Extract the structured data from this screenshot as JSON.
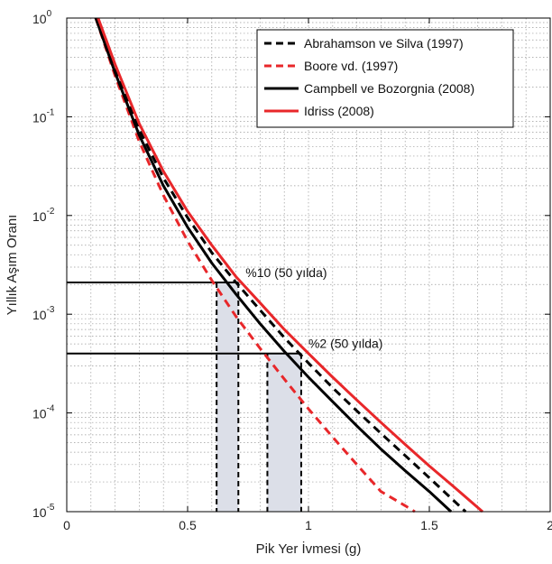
{
  "chart_data": {
    "type": "line",
    "xlabel": "Pik Yer İvmesi (g)",
    "ylabel": "Yıllık Aşım Oranı",
    "xlim": [
      0,
      2
    ],
    "ylim": [
      1e-05,
      1
    ],
    "yscale": "log",
    "grid": true,
    "legend_position": "top-right",
    "x_ticks": [
      {
        "value": 0,
        "label": "0"
      },
      {
        "value": 0.5,
        "label": "0.5"
      },
      {
        "value": 1,
        "label": "1"
      },
      {
        "value": 1.5,
        "label": "1.5"
      },
      {
        "value": 2,
        "label": "2"
      }
    ],
    "y_ticks": [
      {
        "value": 1,
        "mantissa": "10",
        "exponent": "0"
      },
      {
        "value": 0.1,
        "mantissa": "10",
        "exponent": "-1"
      },
      {
        "value": 0.01,
        "mantissa": "10",
        "exponent": "-2"
      },
      {
        "value": 0.001,
        "mantissa": "10",
        "exponent": "-3"
      },
      {
        "value": 0.0001,
        "mantissa": "10",
        "exponent": "-4"
      },
      {
        "value": 1e-05,
        "mantissa": "10",
        "exponent": "-5"
      }
    ],
    "series": [
      {
        "name": "Abrahamson ve Silva (1997)",
        "color": "#000000",
        "dash": "dashed",
        "x": [
          0.12,
          0.2,
          0.3,
          0.4,
          0.5,
          0.6,
          0.7,
          0.8,
          0.9,
          1.0,
          1.1,
          1.2,
          1.3,
          1.4,
          1.5,
          1.6,
          1.65
        ],
        "y": [
          1.0,
          0.3,
          0.074,
          0.024,
          0.0095,
          0.0042,
          0.0021,
          0.0011,
          0.00058,
          0.00032,
          0.00018,
          0.000105,
          6.2e-05,
          3.7e-05,
          2.2e-05,
          1.3e-05,
          1e-05
        ]
      },
      {
        "name": "Boore vd. (1997)",
        "color": "#e8272a",
        "dash": "dashed",
        "x": [
          0.12,
          0.2,
          0.3,
          0.4,
          0.5,
          0.6,
          0.7,
          0.8,
          0.9,
          1.0,
          1.1,
          1.2,
          1.3,
          1.4,
          1.44
        ],
        "y": [
          1.0,
          0.26,
          0.056,
          0.016,
          0.0055,
          0.0022,
          0.00095,
          0.00045,
          0.00022,
          0.00011,
          5.7e-05,
          3e-05,
          1.6e-05,
          1.15e-05,
          1e-05
        ]
      },
      {
        "name": "Campbell ve Bozorgnia  (2008)",
        "color": "#000000",
        "dash": "solid",
        "x": [
          0.12,
          0.2,
          0.3,
          0.4,
          0.5,
          0.6,
          0.7,
          0.8,
          0.9,
          1.0,
          1.1,
          1.2,
          1.3,
          1.4,
          1.5,
          1.59
        ],
        "y": [
          1.0,
          0.28,
          0.065,
          0.02,
          0.0076,
          0.0033,
          0.0016,
          0.0008,
          0.00042,
          0.00023,
          0.00013,
          7.4e-05,
          4.3e-05,
          2.6e-05,
          1.6e-05,
          1e-05
        ]
      },
      {
        "name": "Idriss (2008)",
        "color": "#e8272a",
        "dash": "solid",
        "x": [
          0.13,
          0.2,
          0.3,
          0.4,
          0.5,
          0.6,
          0.7,
          0.8,
          0.9,
          1.0,
          1.1,
          1.2,
          1.3,
          1.4,
          1.5,
          1.6,
          1.72
        ],
        "y": [
          1.0,
          0.34,
          0.085,
          0.028,
          0.011,
          0.005,
          0.0024,
          0.0013,
          0.0007,
          0.0004,
          0.00023,
          0.000135,
          8e-05,
          4.8e-05,
          2.9e-05,
          1.8e-05,
          1e-05
        ]
      }
    ],
    "hazard_levels": [
      {
        "label": "%10 (50 yılda)",
        "rate": 0.0021,
        "x_end": 0.71
      },
      {
        "label": "%2 (50 yılda)",
        "rate": 0.0004,
        "x_end": 0.97
      }
    ],
    "shaded_ranges": [
      {
        "x_from": 0.62,
        "x_to": 0.71,
        "rate": 0.0021,
        "color": "#dcdfe8"
      },
      {
        "x_from": 0.83,
        "x_to": 0.97,
        "rate": 0.0004,
        "color": "#dcdfe8"
      }
    ]
  }
}
